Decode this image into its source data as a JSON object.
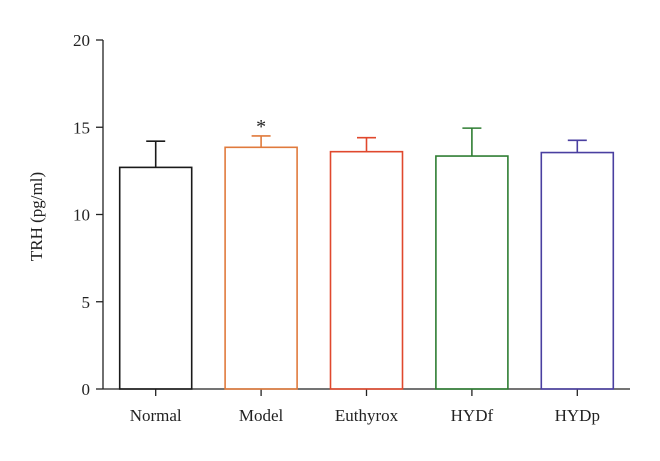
{
  "chart_data": {
    "type": "bar",
    "categories": [
      "Normal",
      "Model",
      "Euthyrox",
      "HYDf",
      "HYDp"
    ],
    "values": [
      12.7,
      13.85,
      13.6,
      13.35,
      13.55
    ],
    "errors": [
      1.5,
      0.65,
      0.8,
      1.6,
      0.7
    ],
    "colors": [
      "#1a1a1a",
      "#e07a3c",
      "#e0482d",
      "#2e7d32",
      "#4a3fa0"
    ],
    "annotations": [
      "",
      "*",
      "",
      "",
      ""
    ],
    "title": "",
    "xlabel": "",
    "ylabel": "TRH (pg/ml)",
    "ylim": [
      0,
      20
    ],
    "yticks": [
      0,
      5,
      10,
      15,
      20
    ],
    "grid": false
  }
}
